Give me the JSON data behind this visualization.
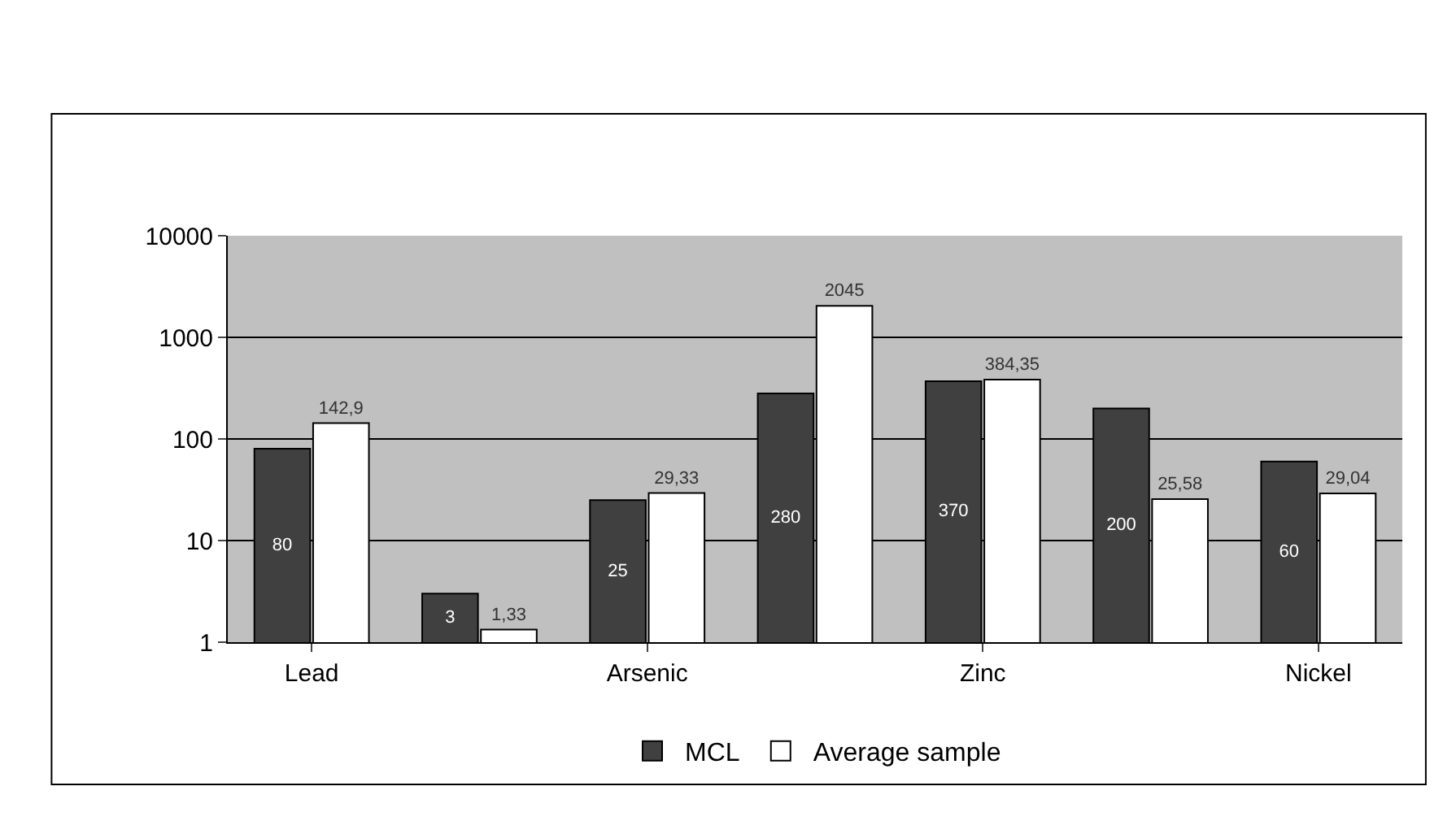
{
  "chart_data": {
    "type": "bar",
    "categories": [
      "Lead",
      null,
      "Arsenic",
      null,
      "Zinc",
      null,
      "Nickel"
    ],
    "series": [
      {
        "name": "MCL",
        "color": "#404040",
        "values": [
          80,
          3,
          25,
          280,
          370,
          200,
          60
        ],
        "value_labels": [
          "80",
          "3",
          "25",
          "280",
          "370",
          "200",
          "60"
        ]
      },
      {
        "name": "Average sample",
        "color": "#ffffff",
        "values": [
          142.9,
          1.33,
          29.33,
          2045,
          384.35,
          25.58,
          29.04
        ],
        "value_labels": [
          "142,9",
          "1,33",
          "29,33",
          "2045",
          "384,35",
          "25,58",
          "29,04"
        ]
      }
    ],
    "log": true,
    "ylim": [
      1,
      10000
    ],
    "yticks": [
      1,
      10,
      100,
      1000,
      10000
    ],
    "grid": "y",
    "legend": "bottom"
  }
}
